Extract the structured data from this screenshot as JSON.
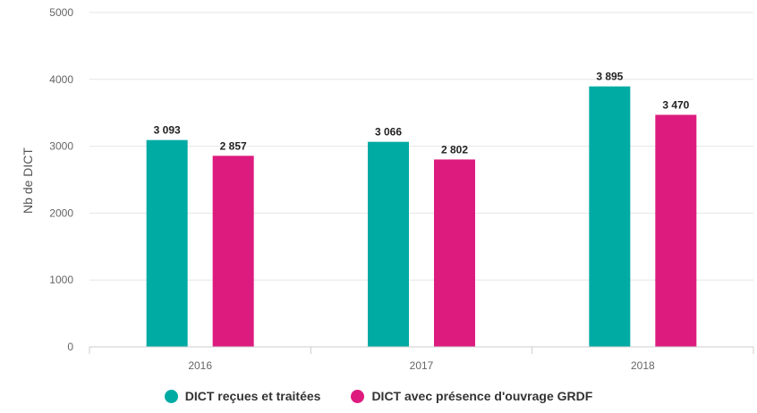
{
  "chart_data": {
    "type": "bar",
    "title": "",
    "xlabel": "",
    "ylabel": "Nb de DICT",
    "ylim": [
      0,
      5000
    ],
    "yticks": [
      0,
      1000,
      2000,
      3000,
      4000,
      5000
    ],
    "categories": [
      "2016",
      "2017",
      "2018"
    ],
    "series": [
      {
        "name": "DICT reçues et traitées",
        "color": "#00aba4",
        "values": [
          3093,
          3066,
          3895
        ],
        "labels": [
          "3 093",
          "3 066",
          "3 895"
        ]
      },
      {
        "name": "DICT avec présence d'ouvrage GRDF",
        "color": "#dd1b7e",
        "values": [
          2857,
          2802,
          3470
        ],
        "labels": [
          "2 857",
          "2 802",
          "3 470"
        ]
      }
    ],
    "grid": true,
    "legend_position": "bottom-center"
  }
}
